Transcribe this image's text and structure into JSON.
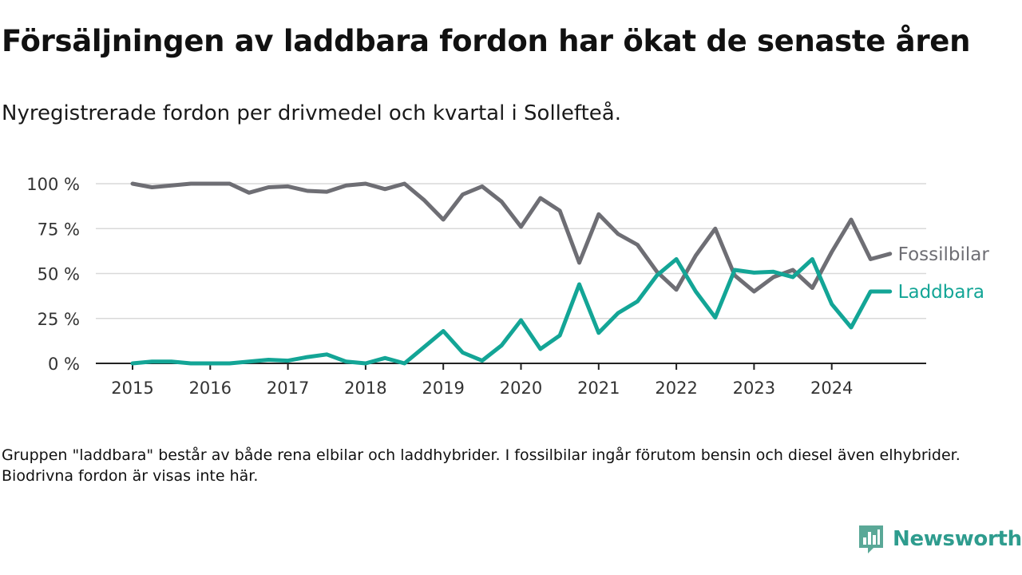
{
  "title": "Försäljningen av laddbara fordon har ökat de senaste åren",
  "subtitle": "Nyregistrerade fordon per drivmedel och kvartal i Sollefteå.",
  "footnote": "Gruppen \"laddbara\" består av både rena elbilar och laddhybrider. I fossilbilar ingår förutom bensin och diesel även elhybrider. Biodrivna fordon är visas inte här.",
  "brand": {
    "name": "Newsworthy",
    "icon": "newsworthy-logo-icon",
    "color": "#2e9c8e"
  },
  "chart_data": {
    "type": "line",
    "x_start": 2015,
    "x_step": 0.25,
    "xlim": [
      2015,
      2025
    ],
    "ylim": [
      0,
      100
    ],
    "x_ticks": [
      2015,
      2016,
      2017,
      2018,
      2019,
      2020,
      2021,
      2022,
      2023,
      2024
    ],
    "x_tick_labels": [
      "2015",
      "2016",
      "2017",
      "2018",
      "2019",
      "2020",
      "2021",
      "2022",
      "2023",
      "2024"
    ],
    "y_ticks": [
      0,
      25,
      50,
      75,
      100
    ],
    "y_tick_labels": [
      "0 %",
      "25 %",
      "50 %",
      "75 %",
      "100 %"
    ],
    "grid": true,
    "legend": "inline-right",
    "series": [
      {
        "name": "Fossilbilar",
        "color": "#6e6e74",
        "values": [
          100,
          98,
          99,
          100,
          100,
          100,
          95,
          98,
          98.5,
          96,
          95.5,
          99,
          100,
          97,
          100,
          91,
          80,
          94,
          98.5,
          90,
          76,
          92,
          85,
          56,
          83,
          72,
          66,
          51,
          41,
          60,
          75,
          49,
          40,
          48,
          52,
          42,
          62,
          80,
          58,
          61
        ]
      },
      {
        "name": "Laddbara",
        "color": "#13a596",
        "values": [
          0,
          1,
          1,
          0,
          0,
          0,
          1,
          2,
          1.5,
          3.5,
          5,
          1,
          0,
          3,
          0,
          9,
          18,
          6,
          1.5,
          10,
          24,
          8,
          15.5,
          44,
          17,
          28,
          34.5,
          49,
          58,
          40,
          25.5,
          52,
          50.5,
          51,
          48,
          58,
          33,
          20,
          40,
          40
        ]
      }
    ]
  }
}
